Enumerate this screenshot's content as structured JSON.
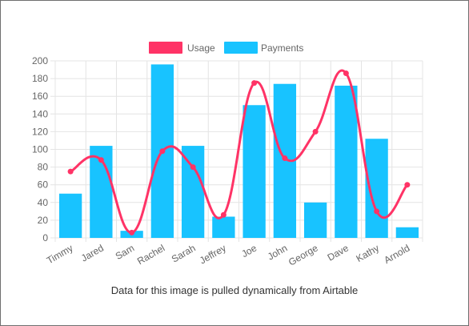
{
  "caption": "Data for this image is pulled dynamically from Airtable",
  "chart_data": {
    "type": "bar",
    "categories": [
      "Timmy",
      "Jared",
      "Sam",
      "Rachel",
      "Sarah",
      "Jeffrey",
      "Joe",
      "John",
      "George",
      "Dave",
      "Kathy",
      "Arnold"
    ],
    "series": [
      {
        "name": "Usage",
        "type": "line",
        "color": "#ff3366",
        "values": [
          75,
          88,
          6,
          98,
          80,
          26,
          175,
          90,
          120,
          186,
          30,
          60
        ]
      },
      {
        "name": "Payments",
        "type": "bar",
        "color": "#18c3ff",
        "values": [
          50,
          104,
          8,
          196,
          104,
          24,
          150,
          174,
          40,
          172,
          112,
          12
        ]
      }
    ],
    "ylim": [
      0,
      200
    ],
    "yticks": [
      0,
      20,
      40,
      60,
      80,
      100,
      120,
      140,
      160,
      180,
      200
    ],
    "grid": true,
    "legend": "top"
  }
}
